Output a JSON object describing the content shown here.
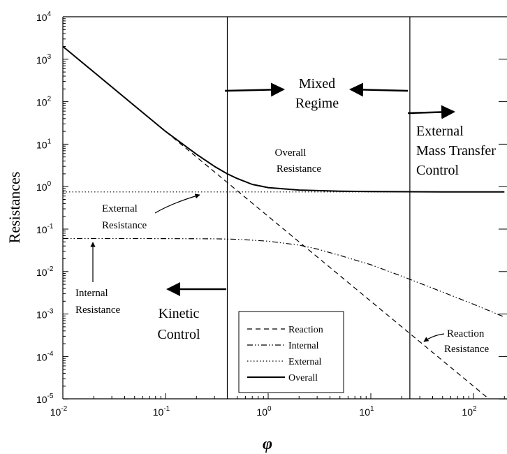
{
  "chart_data": {
    "type": "line",
    "xlabel": "φ",
    "ylabel": "Resistances",
    "x_scale": "log",
    "y_scale": "log",
    "xlim": [
      0.01,
      200
    ],
    "ylim": [
      1e-05,
      10000
    ],
    "x_ticks": [
      {
        "base": "10",
        "exp": "-2",
        "value": 0.01
      },
      {
        "base": "10",
        "exp": "-1",
        "value": 0.1
      },
      {
        "base": "10",
        "exp": "0",
        "value": 1
      },
      {
        "base": "10",
        "exp": "1",
        "value": 10
      },
      {
        "base": "10",
        "exp": "2",
        "value": 100
      }
    ],
    "y_ticks": [
      {
        "base": "10",
        "exp": "4",
        "value": 10000
      },
      {
        "base": "10",
        "exp": "3",
        "value": 1000
      },
      {
        "base": "10",
        "exp": "2",
        "value": 100
      },
      {
        "base": "10",
        "exp": "1",
        "value": 10
      },
      {
        "base": "10",
        "exp": "0",
        "value": 1
      },
      {
        "base": "10",
        "exp": "-1",
        "value": 0.1
      },
      {
        "base": "10",
        "exp": "-2",
        "value": 0.01
      },
      {
        "base": "10",
        "exp": "-3",
        "value": 0.001
      },
      {
        "base": "10",
        "exp": "-4",
        "value": 0.0001
      },
      {
        "base": "10",
        "exp": "-5",
        "value": 1e-05
      }
    ],
    "series": [
      {
        "name": "Reaction",
        "style": "dashed",
        "x": [
          0.01,
          0.1,
          1,
          10,
          100,
          200
        ],
        "y": [
          2000,
          20,
          0.2,
          0.002,
          2e-05,
          5e-06
        ]
      },
      {
        "name": "Internal",
        "style": "dash-dot-dot",
        "x": [
          0.01,
          0.1,
          0.3,
          0.5,
          1,
          2,
          3,
          5,
          10,
          20,
          50,
          100,
          200
        ],
        "y": [
          0.06,
          0.0598,
          0.059,
          0.0575,
          0.052,
          0.042,
          0.034,
          0.024,
          0.0145,
          0.0078,
          0.0033,
          0.0017,
          0.00085
        ]
      },
      {
        "name": "External",
        "style": "dotted",
        "x": [
          0.01,
          200
        ],
        "y": [
          0.75,
          0.75
        ]
      },
      {
        "name": "Overall",
        "style": "solid",
        "x": [
          0.01,
          0.02,
          0.05,
          0.1,
          0.2,
          0.3,
          0.4,
          0.5,
          0.7,
          1,
          2,
          5,
          10,
          50,
          200
        ],
        "y": [
          2000,
          500,
          80,
          20,
          5.8,
          3.0,
          2.0,
          1.55,
          1.13,
          0.95,
          0.83,
          0.78,
          0.765,
          0.752,
          0.75
        ]
      }
    ],
    "vertical_lines": [
      0.4,
      24
    ],
    "legend": {
      "placement": "bottom-center",
      "entries": [
        {
          "label": "Reaction",
          "style": "dashed"
        },
        {
          "label": "Internal",
          "style": "dash-dot-dot"
        },
        {
          "label": "External",
          "style": "dotted"
        },
        {
          "label": "Overall",
          "style": "solid"
        }
      ]
    },
    "annotations": {
      "mixed_regime": [
        "Mixed",
        "Regime"
      ],
      "external_control": [
        "External",
        "Mass Transfer",
        "Control"
      ],
      "kinetic_control": [
        "Kinetic",
        "Control"
      ],
      "overall_resistance": [
        "Overall",
        "Resistance"
      ],
      "external_resistance": [
        "External",
        "Resistance"
      ],
      "internal_resistance": [
        "Internal",
        "Resistance"
      ],
      "reaction_resistance": [
        "Reaction",
        "Resistance"
      ]
    }
  }
}
